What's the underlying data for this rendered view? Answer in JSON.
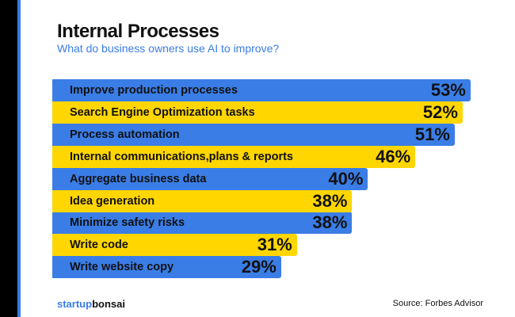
{
  "chart_data": {
    "type": "bar",
    "orientation": "horizontal",
    "title": "Internal Processes",
    "subtitle": "What do business owners use AI to improve?",
    "categories": [
      "Improve production processes",
      "Search Engine Optimization tasks",
      "Process automation",
      "Internal communications,plans & reports",
      "Aggregate business data",
      "Idea generation",
      "Minimize safety risks",
      "Write code",
      "Write website copy"
    ],
    "values": [
      53,
      52,
      51,
      46,
      40,
      38,
      38,
      31,
      29
    ],
    "value_labels": [
      "53%",
      "52%",
      "51%",
      "46%",
      "40%",
      "38%",
      "38%",
      "31%",
      "29%"
    ],
    "colors": [
      "#3a7de6",
      "#ffd600"
    ],
    "grid": false
  },
  "footer": {
    "logo_part1": "startup",
    "logo_part2": "bonsai",
    "source": "Source: Forbes Advisor"
  }
}
